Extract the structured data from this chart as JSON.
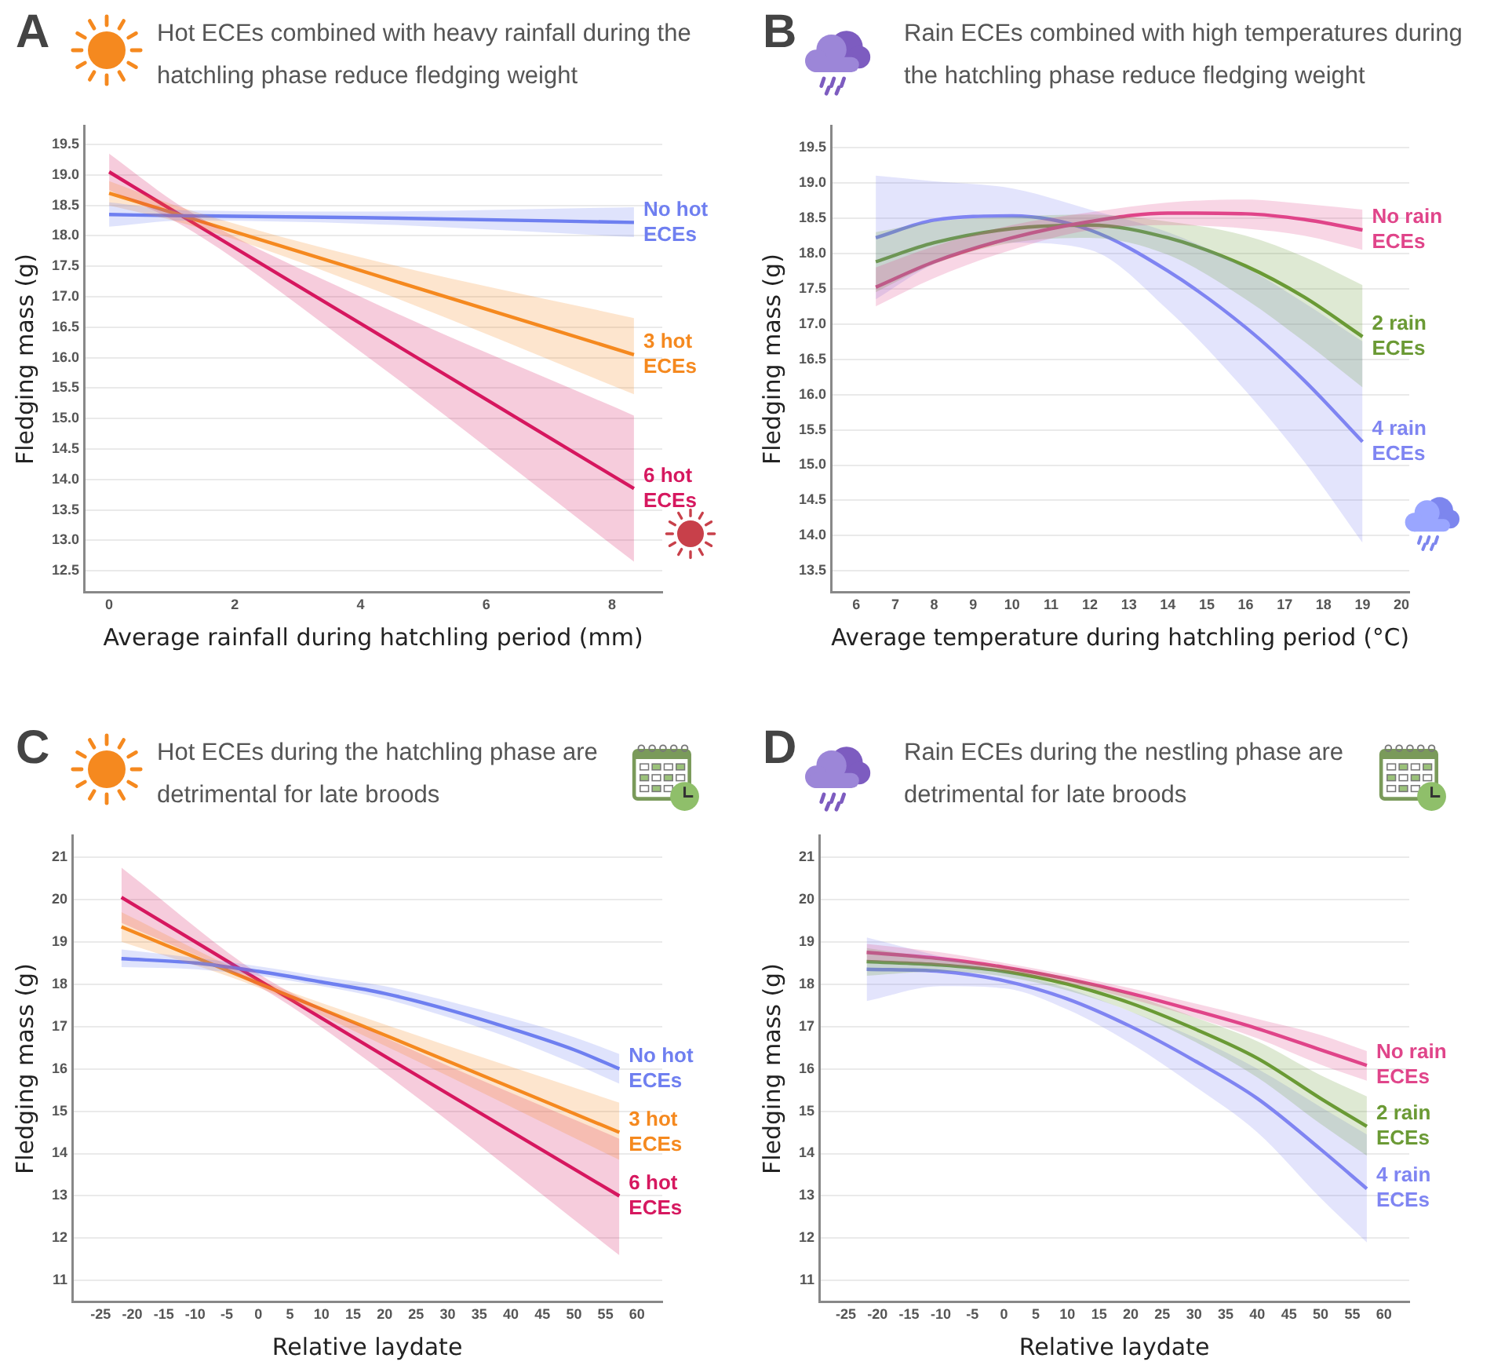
{
  "chart_data": [
    {
      "type": "line",
      "title": "Hot ECEs combined with heavy rainfall during the hatchling phase reduce fledging weight",
      "xlabel": "Average rainfall during hatchling period (mm)",
      "ylabel": "Fledging mass (g)",
      "annotations": [
        "A"
      ],
      "xlim": [
        -0.4,
        8.8
      ],
      "xticks": [
        0,
        2,
        4,
        6,
        8
      ],
      "ylim": [
        12.15,
        19.8
      ],
      "yticks": [
        12.5,
        {
          "value": 13,
          "label": "13.0"
        },
        13.5,
        {
          "value": 14,
          "label": "14.0"
        },
        14.5,
        {
          "value": 15,
          "label": "15.0"
        },
        15.5,
        {
          "value": 16,
          "label": "16.0"
        },
        16.5,
        {
          "value": 17,
          "label": "17.0"
        },
        17.5,
        {
          "value": 18,
          "label": "18.0"
        },
        18.5,
        {
          "value": 19,
          "label": "19.0"
        },
        19.5
      ],
      "grid": "y",
      "legend": false,
      "series": [
        {
          "name": "No hot ECEs",
          "color": "#6f7ff0",
          "x": [
            0,
            1.2,
            4,
            8.35
          ],
          "values": [
            18.35,
            18.33,
            18.3,
            18.22
          ],
          "lower": [
            18.15,
            18.25,
            18.2,
            17.98
          ],
          "upper": [
            18.55,
            18.42,
            18.4,
            18.47
          ]
        },
        {
          "name": "3 hot ECEs",
          "color": "#f5891f",
          "x": [
            0,
            1.2,
            4,
            8.35
          ],
          "values": [
            18.7,
            18.32,
            17.43,
            16.05
          ],
          "lower": [
            18.5,
            18.2,
            17.2,
            15.4
          ],
          "upper": [
            18.9,
            18.45,
            17.65,
            16.65
          ]
        },
        {
          "name": "6 hot ECEs",
          "color": "#d6185f",
          "x": [
            0,
            1.2,
            4,
            8.35
          ],
          "values": [
            19.05,
            18.3,
            16.56,
            13.85
          ],
          "lower": [
            18.75,
            18.15,
            16.1,
            12.65
          ],
          "upper": [
            19.35,
            18.45,
            17.0,
            15.05
          ]
        }
      ]
    },
    {
      "type": "line",
      "title": "Rain ECEs combined with high temperatures during the hatchling phase reduce fledging weight",
      "xlabel": "Average temperature during hatchling period (°C)",
      "ylabel": "Fledging mass (g)",
      "annotations": [
        "B"
      ],
      "xlim": [
        5.35,
        20.2
      ],
      "xticks": [
        6,
        7,
        8,
        9,
        10,
        11,
        12,
        13,
        14,
        15,
        16,
        17,
        18,
        19,
        20
      ],
      "ylim": [
        13.2,
        19.8
      ],
      "yticks": [
        13.5,
        {
          "value": 14,
          "label": "14.0"
        },
        14.5,
        {
          "value": 15,
          "label": "15.0"
        },
        15.5,
        {
          "value": 16,
          "label": "16.0"
        },
        16.5,
        {
          "value": 17,
          "label": "17.0"
        },
        17.5,
        {
          "value": 18,
          "label": "18.0"
        },
        18.5,
        {
          "value": 19,
          "label": "19.0"
        },
        19.5
      ],
      "grid": "y",
      "legend": false,
      "series": [
        {
          "name": "No rain ECEs",
          "color": "#e0458a",
          "x": [
            6.5,
            8,
            10,
            12,
            14,
            16,
            17.5,
            19
          ],
          "values": [
            17.52,
            17.88,
            18.22,
            18.45,
            18.57,
            18.56,
            18.48,
            18.33
          ],
          "lower": [
            17.25,
            17.65,
            18.05,
            18.33,
            18.4,
            18.35,
            18.25,
            18.05
          ],
          "upper": [
            17.8,
            18.1,
            18.4,
            18.58,
            18.72,
            18.76,
            18.7,
            18.62
          ]
        },
        {
          "name": "2 rain ECEs",
          "color": "#6b9a35",
          "x": [
            6.5,
            8,
            10,
            12,
            14,
            16,
            17.5,
            19
          ],
          "values": [
            17.88,
            18.15,
            18.35,
            18.4,
            18.22,
            17.82,
            17.38,
            16.82
          ],
          "lower": [
            17.45,
            17.85,
            18.15,
            18.22,
            17.98,
            17.35,
            16.75,
            16.1
          ],
          "upper": [
            18.3,
            18.45,
            18.52,
            18.55,
            18.45,
            18.25,
            17.95,
            17.55
          ]
        },
        {
          "name": "4 rain ECEs",
          "color": "#7f85f2",
          "x": [
            6.5,
            8,
            10,
            12,
            14,
            16,
            17.5,
            19
          ],
          "values": [
            18.22,
            18.47,
            18.53,
            18.33,
            17.75,
            16.95,
            16.2,
            15.33
          ],
          "lower": [
            17.35,
            17.85,
            18.15,
            18.05,
            17.2,
            16.05,
            15.05,
            13.9
          ],
          "upper": [
            19.1,
            19.02,
            18.92,
            18.62,
            18.3,
            17.8,
            17.3,
            16.75
          ]
        }
      ]
    },
    {
      "type": "line",
      "title": "Hot ECEs during the hatchling phase are detrimental for late broods",
      "xlabel": "Relative laydate",
      "ylabel": "Fledging mass (g)",
      "annotations": [
        "C"
      ],
      "xlim": [
        -29.5,
        64
      ],
      "xticks": [
        -25,
        -20,
        -15,
        -10,
        -5,
        0,
        5,
        10,
        15,
        20,
        25,
        30,
        35,
        40,
        45,
        50,
        55,
        60
      ],
      "ylim": [
        10.5,
        21.5
      ],
      "yticks": [
        11,
        12,
        13,
        14,
        15,
        16,
        17,
        18,
        19,
        20,
        21
      ],
      "grid": "y",
      "legend": false,
      "series": [
        {
          "name": "No hot ECEs",
          "color": "#6f7ff0",
          "x": [
            -21.7,
            -10,
            0,
            10,
            20,
            30,
            40,
            50,
            57.2
          ],
          "values": [
            18.6,
            18.5,
            18.3,
            18.05,
            17.78,
            17.4,
            16.95,
            16.45,
            16.0
          ],
          "lower": [
            18.4,
            18.35,
            18.2,
            17.95,
            17.65,
            17.22,
            16.72,
            16.12,
            15.65
          ],
          "upper": [
            18.82,
            18.62,
            18.42,
            18.18,
            17.95,
            17.6,
            17.2,
            16.75,
            16.35
          ]
        },
        {
          "name": "3 hot ECEs",
          "color": "#f5891f",
          "x": [
            -21.7,
            0,
            20,
            57.2
          ],
          "values": [
            19.35,
            18.02,
            16.8,
            14.5
          ],
          "lower": [
            19.0,
            17.92,
            16.55,
            13.85
          ],
          "upper": [
            19.7,
            18.12,
            17.05,
            15.2
          ]
        },
        {
          "name": "6 hot ECEs",
          "color": "#d6185f",
          "x": [
            -21.7,
            0,
            20,
            57.2
          ],
          "values": [
            20.05,
            18.1,
            16.3,
            13.0
          ],
          "lower": [
            19.45,
            17.95,
            15.9,
            11.6
          ],
          "upper": [
            20.75,
            18.25,
            16.75,
            14.35
          ]
        }
      ]
    },
    {
      "type": "line",
      "title": "Rain ECEs during the nestling phase are detrimental for late broods",
      "xlabel": "Relative laydate",
      "ylabel": "Fledging mass (g)",
      "annotations": [
        "D"
      ],
      "xlim": [
        -29.2,
        64
      ],
      "xticks": [
        -25,
        -20,
        -15,
        -10,
        -5,
        0,
        5,
        10,
        15,
        20,
        25,
        30,
        35,
        40,
        45,
        50,
        55,
        60
      ],
      "ylim": [
        10.5,
        21.5
      ],
      "yticks": [
        11,
        12,
        13,
        14,
        15,
        16,
        17,
        18,
        19,
        20,
        21
      ],
      "grid": "y",
      "legend": false,
      "series": [
        {
          "name": "No rain ECEs",
          "color": "#e0458a",
          "x": [
            -21.7,
            -10,
            0,
            10,
            20,
            30,
            40,
            50,
            57.3
          ],
          "values": [
            18.75,
            18.6,
            18.4,
            18.12,
            17.78,
            17.38,
            16.95,
            16.45,
            16.08
          ],
          "lower": [
            18.55,
            18.45,
            18.3,
            18.02,
            17.65,
            17.22,
            16.72,
            16.1,
            15.72
          ],
          "upper": [
            18.95,
            18.75,
            18.5,
            18.22,
            17.9,
            17.55,
            17.18,
            16.8,
            16.42
          ]
        },
        {
          "name": "2 rain ECEs",
          "color": "#6b9a35",
          "x": [
            -21.7,
            -10,
            0,
            10,
            20,
            30,
            40,
            50,
            57.3
          ],
          "values": [
            18.53,
            18.45,
            18.3,
            18.0,
            17.55,
            16.95,
            16.25,
            15.3,
            14.64
          ],
          "lower": [
            18.2,
            18.3,
            18.18,
            17.85,
            17.35,
            16.65,
            15.8,
            14.7,
            13.95
          ],
          "upper": [
            18.85,
            18.6,
            18.42,
            18.15,
            17.75,
            17.22,
            16.65,
            15.85,
            15.35
          ]
        },
        {
          "name": "4 rain ECEs",
          "color": "#7f85f2",
          "x": [
            -21.7,
            -10,
            0,
            10,
            20,
            30,
            40,
            50,
            57.3
          ],
          "values": [
            18.35,
            18.3,
            18.08,
            17.65,
            17.0,
            16.2,
            15.3,
            14.1,
            13.17
          ],
          "lower": [
            17.6,
            17.95,
            17.9,
            17.4,
            16.6,
            15.6,
            14.5,
            12.95,
            11.9
          ],
          "upper": [
            19.1,
            18.65,
            18.3,
            17.9,
            17.35,
            16.75,
            16.0,
            15.1,
            14.45
          ]
        }
      ]
    }
  ]
}
